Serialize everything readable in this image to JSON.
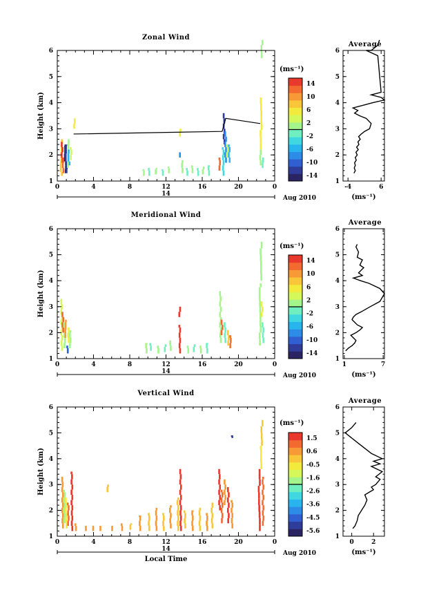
{
  "colors": [
    "#2b2462",
    "#2f3c99",
    "#2f5fd0",
    "#2d8de6",
    "#28b5ee",
    "#3fd8e0",
    "#6fefc0",
    "#a3f58c",
    "#d4f75a",
    "#f3ea3e",
    "#f9c63a",
    "#f79a35",
    "#f26a30",
    "#e8392c"
  ],
  "chart_data": [
    {
      "type": "heatmap",
      "title": "Zonal Wind",
      "ylabel": "Height (km)",
      "unit": "(ms⁻¹)",
      "xticks": [
        "0",
        "4",
        "8",
        "12",
        "16",
        "20",
        "0"
      ],
      "yticks": [
        "1",
        "2",
        "3",
        "4",
        "5",
        "6"
      ],
      "xlim": [
        0,
        24
      ],
      "ylim": [
        1,
        6
      ],
      "day_label": "14",
      "date_label": "Aug 2010",
      "colorbar_ticks": [
        "14",
        "10",
        "6",
        "2",
        "-2",
        "-6",
        "-10",
        "-14"
      ],
      "colorbar_range": [
        -16,
        16
      ],
      "line": [
        [
          1.8,
          2.8
        ],
        [
          18.2,
          2.9
        ],
        [
          18.6,
          3.4
        ],
        [
          22.4,
          3.2
        ]
      ],
      "cells": [
        [
          0.35,
          1.2,
          2.6,
          8,
          0.2,
          0.15
        ],
        [
          0.45,
          1.7,
          2.5,
          14,
          0.2,
          0.2
        ],
        [
          0.55,
          1.3,
          1.9,
          12,
          0.15,
          0.2
        ],
        [
          0.8,
          1.3,
          2.4,
          -14,
          0.15,
          0.15
        ],
        [
          0.9,
          1.3,
          2.4,
          -12,
          0.15,
          0.15
        ],
        [
          1.1,
          1.5,
          2.6,
          2,
          0.15,
          0.15
        ],
        [
          1.2,
          1.6,
          2.2,
          -6,
          0.15,
          0.15
        ],
        [
          1.4,
          1.8,
          2.3,
          4,
          0.15,
          0.2
        ],
        [
          1.8,
          3.0,
          3.4,
          6,
          0.15,
          0.2
        ],
        [
          9.4,
          1.2,
          1.45,
          2,
          0.15,
          0.2
        ],
        [
          10.0,
          1.2,
          1.5,
          -2,
          0.2,
          0.2
        ],
        [
          10.8,
          1.25,
          1.5,
          2,
          0.2,
          0.2
        ],
        [
          11.5,
          1.2,
          1.45,
          -2,
          0.2,
          0.2
        ],
        [
          12.2,
          1.3,
          1.55,
          2,
          0.2,
          0.2
        ],
        [
          13.5,
          1.9,
          2.1,
          -8,
          0.2,
          0.2
        ],
        [
          13.5,
          2.7,
          3.0,
          6,
          0.2,
          0.2
        ],
        [
          13.7,
          1.3,
          1.8,
          2,
          0.2,
          0.2
        ],
        [
          14.2,
          1.2,
          1.5,
          -2,
          0.2,
          0.2
        ],
        [
          14.8,
          1.3,
          1.6,
          2,
          0.2,
          0.2
        ],
        [
          15.4,
          1.2,
          1.5,
          -2,
          0.2,
          0.2
        ],
        [
          16.0,
          1.25,
          1.55,
          2,
          0.2,
          0.2
        ],
        [
          16.6,
          1.2,
          1.6,
          -2,
          0.2,
          0.2
        ],
        [
          17.8,
          1.4,
          1.9,
          12,
          0.2,
          0.2
        ],
        [
          18.2,
          1.2,
          2.3,
          -4,
          0.2,
          0.2
        ],
        [
          18.3,
          2.4,
          3.6,
          -12,
          0.2,
          0.2
        ],
        [
          18.5,
          1.7,
          2.9,
          -8,
          0.2,
          0.2
        ],
        [
          18.7,
          1.9,
          2.4,
          4,
          0.2,
          0.2
        ],
        [
          18.9,
          1.7,
          2.4,
          -6,
          0.15,
          0.2
        ],
        [
          22.3,
          1.6,
          2.2,
          2,
          0.2,
          0.2
        ],
        [
          22.4,
          2.2,
          4.2,
          6,
          0.2,
          0.25
        ],
        [
          22.5,
          5.7,
          6.4,
          2,
          0.15,
          0.25
        ],
        [
          22.6,
          1.5,
          1.9,
          -2,
          0.15,
          0.2
        ]
      ]
    },
    {
      "type": "heatmap",
      "title": "Meridional Wind",
      "ylabel": "Height (km)",
      "unit": "(ms⁻¹)",
      "xticks": [
        "0",
        "4",
        "8",
        "12",
        "16",
        "20",
        "0"
      ],
      "yticks": [
        "1",
        "2",
        "3",
        "4",
        "5",
        "6"
      ],
      "xlim": [
        0,
        24
      ],
      "ylim": [
        1,
        6
      ],
      "day_label": "14",
      "date_label": "Aug 2010",
      "colorbar_ticks": [
        "14",
        "10",
        "6",
        "2",
        "-2",
        "-6",
        "-10",
        "-14"
      ],
      "colorbar_range": [
        -16,
        16
      ],
      "line": [],
      "cells": [
        [
          0.4,
          1.3,
          3.3,
          4,
          0.2,
          0.2
        ],
        [
          0.5,
          2.0,
          2.8,
          12,
          0.2,
          0.2
        ],
        [
          0.7,
          1.4,
          2.4,
          2,
          0.2,
          0.2
        ],
        [
          0.8,
          1.8,
          2.5,
          10,
          0.15,
          0.15
        ],
        [
          1.0,
          1.2,
          1.5,
          -10,
          0.2,
          0.2
        ],
        [
          1.1,
          1.6,
          2.2,
          6,
          0.15,
          0.2
        ],
        [
          1.3,
          1.4,
          2.1,
          2,
          0.15,
          0.2
        ],
        [
          9.7,
          1.2,
          1.6,
          2,
          0.2,
          0.2
        ],
        [
          10.2,
          1.3,
          1.6,
          -2,
          0.2,
          0.2
        ],
        [
          11.0,
          1.2,
          1.5,
          2,
          0.2,
          0.2
        ],
        [
          11.8,
          1.25,
          1.55,
          -2,
          0.2,
          0.2
        ],
        [
          12.4,
          1.3,
          1.7,
          2,
          0.2,
          0.2
        ],
        [
          13.4,
          1.2,
          2.3,
          14,
          0.2,
          0.2
        ],
        [
          13.4,
          2.6,
          3.0,
          14,
          0.2,
          0.2
        ],
        [
          14.3,
          1.2,
          1.5,
          2,
          0.2,
          0.2
        ],
        [
          15.0,
          1.25,
          1.55,
          -2,
          0.2,
          0.2
        ],
        [
          15.7,
          1.2,
          1.5,
          2,
          0.2,
          0.2
        ],
        [
          16.4,
          1.2,
          1.6,
          -2,
          0.2,
          0.2
        ],
        [
          17.9,
          1.6,
          3.6,
          2,
          0.2,
          0.2
        ],
        [
          18.1,
          1.9,
          2.5,
          12,
          0.2,
          0.2
        ],
        [
          18.4,
          1.6,
          2.4,
          -2,
          0.2,
          0.2
        ],
        [
          18.8,
          1.5,
          2.1,
          8,
          0.15,
          0.2
        ],
        [
          19.0,
          1.4,
          1.9,
          12,
          0.15,
          0.2
        ],
        [
          22.3,
          1.5,
          3.9,
          2,
          0.2,
          0.25
        ],
        [
          22.4,
          4.0,
          5.5,
          2,
          0.2,
          0.25
        ],
        [
          22.5,
          2.6,
          3.2,
          6,
          0.15,
          0.2
        ],
        [
          22.6,
          1.6,
          2.4,
          -2,
          0.15,
          0.2
        ]
      ]
    },
    {
      "type": "heatmap",
      "title": "Vertical Wind",
      "ylabel": "Height (km)",
      "xlabel": "Local Time",
      "unit": "(ms⁻¹)",
      "xticks": [
        "0",
        "4",
        "8",
        "12",
        "16",
        "20",
        "0"
      ],
      "yticks": [
        "1",
        "2",
        "3",
        "4",
        "5",
        "6"
      ],
      "xlim": [
        0,
        24
      ],
      "ylim": [
        1,
        6
      ],
      "day_label": "14",
      "date_label": "Aug 2010",
      "colorbar_ticks": [
        "1.5",
        "0.6",
        "-0.5",
        "-1.6",
        "-2.6",
        "-3.6",
        "-4.5",
        "-5.6"
      ],
      "colorbar_range": [
        -6.0,
        2.0
      ],
      "line": [],
      "cells": [
        [
          0.5,
          1.3,
          3.3,
          0.6,
          0.2,
          0.2
        ],
        [
          0.7,
          1.5,
          2.8,
          -1.6,
          0.2,
          0.2
        ],
        [
          0.9,
          1.3,
          2.5,
          -0.5,
          0.2,
          0.2
        ],
        [
          1.1,
          1.4,
          2.3,
          1.0,
          0.15,
          0.2
        ],
        [
          1.5,
          1.2,
          3.5,
          1.5,
          0.2,
          0.2
        ],
        [
          1.9,
          1.2,
          1.5,
          0.3,
          0.2,
          0.2
        ],
        [
          3.0,
          1.2,
          1.4,
          0.3,
          0.2,
          0.2
        ],
        [
          3.8,
          1.2,
          1.4,
          0.3,
          0.2,
          0.2
        ],
        [
          4.6,
          1.2,
          1.4,
          0.3,
          0.2,
          0.2
        ],
        [
          5.5,
          2.7,
          3.0,
          0.2,
          0.2,
          0.2
        ],
        [
          5.9,
          1.2,
          1.4,
          0.3,
          0.2,
          0.2
        ],
        [
          7.0,
          1.2,
          1.5,
          0.3,
          0.2,
          0.2
        ],
        [
          8.0,
          1.25,
          1.5,
          0.2,
          0.2,
          0.2
        ],
        [
          9.0,
          1.2,
          1.8,
          0.3,
          0.2,
          0.2
        ],
        [
          10.0,
          1.2,
          1.9,
          0.2,
          0.2,
          0.2
        ],
        [
          10.8,
          1.2,
          2.1,
          0.3,
          0.2,
          0.2
        ],
        [
          11.6,
          1.2,
          1.9,
          0.2,
          0.2,
          0.2
        ],
        [
          12.4,
          1.3,
          2.2,
          0.3,
          0.2,
          0.2
        ],
        [
          13.2,
          1.2,
          2.5,
          0.2,
          0.2,
          0.2
        ],
        [
          13.5,
          1.2,
          3.6,
          1.5,
          0.2,
          0.2
        ],
        [
          14.0,
          1.3,
          2.0,
          0.2,
          0.2,
          0.2
        ],
        [
          14.8,
          1.2,
          2.0,
          0.3,
          0.2,
          0.2
        ],
        [
          15.6,
          1.2,
          2.1,
          0.2,
          0.2,
          0.2
        ],
        [
          16.4,
          1.2,
          1.9,
          0.3,
          0.2,
          0.2
        ],
        [
          17.0,
          1.3,
          2.3,
          0.2,
          0.2,
          0.2
        ],
        [
          17.8,
          2.0,
          3.6,
          1.5,
          0.2,
          0.2
        ],
        [
          18.1,
          1.5,
          2.8,
          1.2,
          0.2,
          0.2
        ],
        [
          18.4,
          2.2,
          3.2,
          0.6,
          0.2,
          0.2
        ],
        [
          18.8,
          1.5,
          2.9,
          1.5,
          0.2,
          0.2
        ],
        [
          19.2,
          1.3,
          2.4,
          0.8,
          0.2,
          0.2
        ],
        [
          22.2,
          1.2,
          3.6,
          1.5,
          0.2,
          0.25
        ],
        [
          22.4,
          3.6,
          4.5,
          -0.5,
          0.2,
          0.25
        ],
        [
          22.5,
          4.5,
          5.5,
          0.2,
          0.15,
          0.25
        ],
        [
          22.6,
          1.4,
          3.3,
          1.2,
          0.15,
          0.2
        ],
        [
          19.2,
          4.8,
          4.9,
          -5.0,
          0.1,
          0.1
        ]
      ]
    }
  ],
  "profiles": [
    {
      "title": "Average",
      "xlabel": "(ms⁻¹)",
      "xticks": [
        "-4",
        "6"
      ],
      "xlim": [
        -5.5,
        7.0
      ],
      "yticks": [
        "1",
        "2",
        "3",
        "4",
        "5",
        "6"
      ],
      "ylim": [
        1,
        6
      ],
      "points": [
        [
          -2.2,
          1.3
        ],
        [
          -1.8,
          1.4
        ],
        [
          -2.1,
          1.5
        ],
        [
          -1.8,
          1.6
        ],
        [
          -2.0,
          1.7
        ],
        [
          -1.5,
          1.8
        ],
        [
          -1.8,
          1.9
        ],
        [
          -1.2,
          2.0
        ],
        [
          -1.6,
          2.1
        ],
        [
          -0.9,
          2.2
        ],
        [
          -1.4,
          2.3
        ],
        [
          -0.7,
          2.4
        ],
        [
          -1.0,
          2.5
        ],
        [
          -0.3,
          2.6
        ],
        [
          -0.8,
          2.7
        ],
        [
          0.0,
          2.8
        ],
        [
          1.0,
          2.9
        ],
        [
          2.5,
          3.0
        ],
        [
          3.0,
          3.2
        ],
        [
          1.5,
          3.4
        ],
        [
          -0.5,
          3.5
        ],
        [
          -2.0,
          3.6
        ],
        [
          -1.0,
          3.7
        ],
        [
          -2.5,
          3.8
        ],
        [
          0.5,
          3.9
        ],
        [
          3.5,
          4.0
        ],
        [
          7.0,
          4.1
        ],
        [
          6.0,
          4.2
        ],
        [
          3.0,
          4.3
        ],
        [
          6.0,
          4.4
        ],
        [
          5.0,
          5.8
        ],
        [
          1.5,
          6.0
        ],
        [
          3.0,
          6.0
        ],
        [
          5.0,
          6.2
        ],
        [
          5.5,
          6.4
        ]
      ]
    },
    {
      "title": "Average",
      "xlabel": "(ms⁻¹)",
      "xticks": [
        "1",
        "7"
      ],
      "xlim": [
        0.8,
        7.2
      ],
      "yticks": [
        "1",
        "2",
        "3",
        "4",
        "5",
        "6"
      ],
      "ylim": [
        1,
        6
      ],
      "points": [
        [
          1.2,
          1.3
        ],
        [
          1.6,
          1.4
        ],
        [
          2.2,
          1.5
        ],
        [
          2.6,
          1.6
        ],
        [
          2.8,
          1.7
        ],
        [
          2.4,
          1.8
        ],
        [
          2.0,
          1.9
        ],
        [
          2.8,
          2.0
        ],
        [
          3.4,
          2.1
        ],
        [
          3.8,
          2.2
        ],
        [
          3.0,
          2.3
        ],
        [
          2.6,
          2.4
        ],
        [
          2.2,
          2.5
        ],
        [
          2.4,
          2.6
        ],
        [
          2.8,
          2.7
        ],
        [
          3.6,
          2.8
        ],
        [
          5.0,
          3.0
        ],
        [
          6.5,
          3.2
        ],
        [
          7.2,
          3.5
        ],
        [
          6.5,
          3.7
        ],
        [
          4.8,
          3.9
        ],
        [
          3.5,
          4.0
        ],
        [
          2.4,
          4.1
        ],
        [
          3.8,
          4.2
        ],
        [
          3.2,
          4.3
        ],
        [
          4.0,
          4.5
        ],
        [
          3.4,
          4.6
        ],
        [
          3.8,
          4.8
        ],
        [
          3.0,
          4.9
        ],
        [
          3.2,
          5.1
        ],
        [
          2.8,
          5.3
        ],
        [
          3.0,
          5.4
        ]
      ]
    },
    {
      "title": "Average",
      "xlabel": "(ms⁻¹)",
      "xticks": [
        "0",
        "2"
      ],
      "xlim": [
        -0.8,
        3.0
      ],
      "yticks": [
        "1",
        "2",
        "3",
        "4",
        "5",
        "6"
      ],
      "ylim": [
        1,
        6
      ],
      "points": [
        [
          0.1,
          1.3
        ],
        [
          0.3,
          1.4
        ],
        [
          0.5,
          1.6
        ],
        [
          0.6,
          1.8
        ],
        [
          0.9,
          2.0
        ],
        [
          1.2,
          2.2
        ],
        [
          1.4,
          2.4
        ],
        [
          1.2,
          2.6
        ],
        [
          1.6,
          2.7
        ],
        [
          2.0,
          2.8
        ],
        [
          1.8,
          2.9
        ],
        [
          2.2,
          3.0
        ],
        [
          2.6,
          3.2
        ],
        [
          2.2,
          3.3
        ],
        [
          2.8,
          3.5
        ],
        [
          1.8,
          3.7
        ],
        [
          2.6,
          3.8
        ],
        [
          2.0,
          3.9
        ],
        [
          2.8,
          4.0
        ],
        [
          1.8,
          4.2
        ],
        [
          1.2,
          4.4
        ],
        [
          0.6,
          4.6
        ],
        [
          0.0,
          4.8
        ],
        [
          -0.6,
          5.0
        ],
        [
          0.0,
          5.2
        ],
        [
          0.4,
          5.4
        ]
      ]
    }
  ]
}
